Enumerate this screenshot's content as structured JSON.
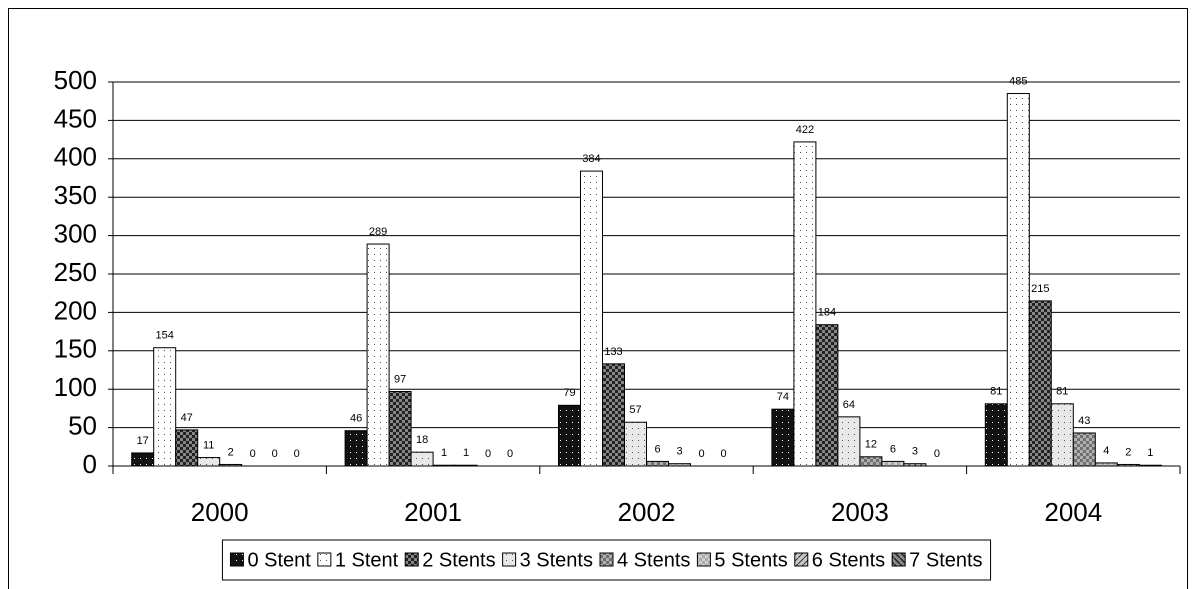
{
  "chart_data": {
    "type": "bar",
    "categories": [
      "2000",
      "2001",
      "2002",
      "2003",
      "2004"
    ],
    "series": [
      {
        "name": "0 Stent",
        "color": "#111111",
        "values": [
          17,
          46,
          79,
          74,
          81
        ]
      },
      {
        "name": "1 Stent",
        "color": "#ffffff",
        "values": [
          154,
          289,
          384,
          422,
          485
        ]
      },
      {
        "name": "2 Stents",
        "color": "#222222",
        "values": [
          47,
          97,
          133,
          184,
          215
        ]
      },
      {
        "name": "3 Stents",
        "color": "#e8e8e8",
        "values": [
          11,
          18,
          57,
          64,
          81
        ]
      },
      {
        "name": "4 Stents",
        "color": "#707070",
        "values": [
          2,
          1,
          6,
          12,
          43
        ]
      },
      {
        "name": "5 Stents",
        "color": "#a8a8a8",
        "values": [
          0,
          1,
          3,
          6,
          4
        ]
      },
      {
        "name": "6 Stents",
        "color": "#c8c8c8",
        "values": [
          0,
          0,
          0,
          3,
          2
        ]
      },
      {
        "name": "7 Stents",
        "color": "#8a8a8a",
        "values": [
          0,
          0,
          0,
          0,
          1
        ]
      }
    ],
    "ylim": [
      0,
      500
    ],
    "yticks": [
      0,
      50,
      100,
      150,
      200,
      250,
      300,
      350,
      400,
      450,
      500
    ],
    "grid": true,
    "legend": "bottom"
  }
}
